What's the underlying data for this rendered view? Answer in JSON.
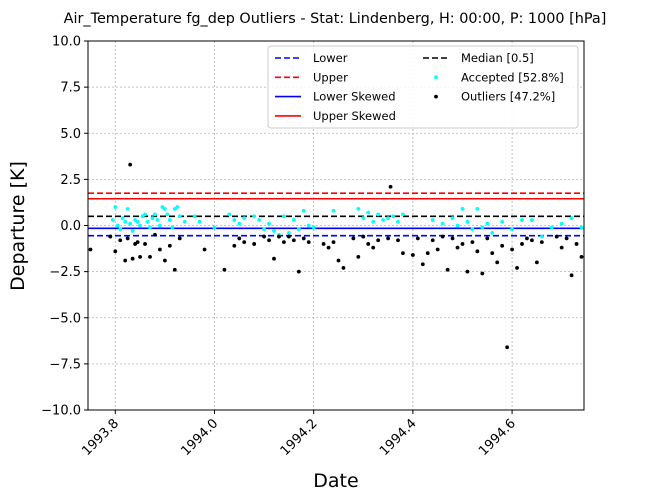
{
  "chart_data": {
    "type": "scatter",
    "title": "Air_Temperature fg_dep Outliers - Stat: Lindenberg, H: 00:00, P: 1000 [hPa]",
    "xlabel": "Date",
    "ylabel": "Departure [K]",
    "xlim": [
      1993.745,
      1994.745
    ],
    "ylim": [
      -10.0,
      10.0
    ],
    "xticks": [
      1993.8,
      1994.0,
      1994.2,
      1994.4,
      1994.6
    ],
    "xtick_labels": [
      "1993.8",
      "1994.0",
      "1994.2",
      "1994.4",
      "1994.6"
    ],
    "yticks": [
      -10.0,
      -7.5,
      -5.0,
      -2.5,
      0.0,
      2.5,
      5.0,
      7.5,
      10.0
    ],
    "ytick_labels": [
      "−10.0",
      "−7.5",
      "−5.0",
      "−2.5",
      "0.0",
      "2.5",
      "5.0",
      "7.5",
      "10.0"
    ],
    "grid": true,
    "legend_position": "top-right",
    "lines": [
      {
        "name": "Lower",
        "y": -0.55,
        "color": "#0000ff",
        "style": "dashed"
      },
      {
        "name": "Upper",
        "y": 1.75,
        "color": "#ff0000",
        "style": "dashed"
      },
      {
        "name": "Lower Skewed",
        "y": -0.15,
        "color": "#0000ff",
        "style": "solid"
      },
      {
        "name": "Upper Skewed",
        "y": 1.45,
        "color": "#ff0000",
        "style": "solid"
      },
      {
        "name": "Median [0.5]",
        "y": 0.5,
        "color": "#000000",
        "style": "dashed"
      }
    ],
    "legend_order": [
      "Lower",
      "Upper",
      "Lower Skewed",
      "Upper Skewed",
      "Median [0.5]",
      "Accepted [52.8%]",
      "Outliers [47.2%]"
    ],
    "series": [
      {
        "name": "Accepted [52.8%]",
        "color": "#00ffff",
        "points": [
          [
            1993.795,
            0.3
          ],
          [
            1993.8,
            1.0
          ],
          [
            1993.805,
            0.0
          ],
          [
            1993.81,
            -0.2
          ],
          [
            1993.815,
            0.4
          ],
          [
            1993.82,
            0.2
          ],
          [
            1993.825,
            0.9
          ],
          [
            1993.83,
            0.1
          ],
          [
            1993.835,
            -0.3
          ],
          [
            1993.84,
            0.3
          ],
          [
            1993.845,
            0.2
          ],
          [
            1993.85,
            0.0
          ],
          [
            1993.855,
            0.5
          ],
          [
            1993.86,
            0.6
          ],
          [
            1993.865,
            0.2
          ],
          [
            1993.87,
            -0.1
          ],
          [
            1993.875,
            0.4
          ],
          [
            1993.88,
            0.6
          ],
          [
            1993.885,
            0.3
          ],
          [
            1993.89,
            0.0
          ],
          [
            1993.895,
            1.0
          ],
          [
            1993.9,
            0.9
          ],
          [
            1993.905,
            0.6
          ],
          [
            1993.91,
            0.3
          ],
          [
            1993.915,
            -0.1
          ],
          [
            1993.92,
            0.9
          ],
          [
            1993.925,
            1.0
          ],
          [
            1993.93,
            0.5
          ],
          [
            1993.94,
            0.2
          ],
          [
            1993.96,
            0.5
          ],
          [
            1993.97,
            0.2
          ],
          [
            1994.0,
            -0.1
          ],
          [
            1994.03,
            0.6
          ],
          [
            1994.04,
            0.3
          ],
          [
            1994.05,
            0.1
          ],
          [
            1994.06,
            0.4
          ],
          [
            1994.08,
            0.5
          ],
          [
            1994.09,
            0.3
          ],
          [
            1994.1,
            -0.2
          ],
          [
            1994.11,
            0.1
          ],
          [
            1994.12,
            -0.3
          ],
          [
            1994.13,
            -0.5
          ],
          [
            1994.14,
            0.5
          ],
          [
            1994.15,
            -0.4
          ],
          [
            1994.16,
            0.3
          ],
          [
            1994.17,
            -0.2
          ],
          [
            1994.18,
            0.8
          ],
          [
            1994.19,
            0.0
          ],
          [
            1994.2,
            -0.1
          ],
          [
            1994.24,
            0.8
          ],
          [
            1994.29,
            0.9
          ],
          [
            1994.3,
            0.4
          ],
          [
            1994.31,
            0.7
          ],
          [
            1994.32,
            0.2
          ],
          [
            1994.33,
            0.6
          ],
          [
            1994.34,
            0.3
          ],
          [
            1994.35,
            0.4
          ],
          [
            1994.36,
            0.5
          ],
          [
            1994.37,
            0.2
          ],
          [
            1994.38,
            0.6
          ],
          [
            1994.44,
            0.3
          ],
          [
            1994.46,
            0.1
          ],
          [
            1994.48,
            0.4
          ],
          [
            1994.49,
            0.0
          ],
          [
            1994.5,
            0.9
          ],
          [
            1994.51,
            0.2
          ],
          [
            1994.52,
            -0.2
          ],
          [
            1994.53,
            0.9
          ],
          [
            1994.54,
            -0.1
          ],
          [
            1994.55,
            0.1
          ],
          [
            1994.56,
            -0.4
          ],
          [
            1994.58,
            0.2
          ],
          [
            1994.6,
            -0.2
          ],
          [
            1994.62,
            0.3
          ],
          [
            1994.64,
            0.3
          ],
          [
            1994.66,
            -0.6
          ],
          [
            1994.68,
            -0.1
          ],
          [
            1994.7,
            0.1
          ],
          [
            1994.72,
            0.4
          ],
          [
            1994.74,
            -0.1
          ]
        ]
      },
      {
        "name": "Outliers [47.2%]",
        "color": "#000000",
        "points": [
          [
            1993.75,
            -1.3
          ],
          [
            1993.79,
            -0.6
          ],
          [
            1993.8,
            -1.4
          ],
          [
            1993.81,
            -0.8
          ],
          [
            1993.82,
            -1.9
          ],
          [
            1993.825,
            -0.7
          ],
          [
            1993.83,
            3.3
          ],
          [
            1993.835,
            -1.8
          ],
          [
            1993.84,
            -1.0
          ],
          [
            1993.845,
            -0.9
          ],
          [
            1993.85,
            -1.7
          ],
          [
            1993.86,
            -1.0
          ],
          [
            1993.87,
            -1.7
          ],
          [
            1993.88,
            -0.5
          ],
          [
            1993.89,
            -1.3
          ],
          [
            1993.9,
            -1.9
          ],
          [
            1993.91,
            -1.1
          ],
          [
            1993.92,
            -2.4
          ],
          [
            1993.93,
            -0.7
          ],
          [
            1993.98,
            -1.3
          ],
          [
            1994.02,
            -2.4
          ],
          [
            1994.04,
            -1.1
          ],
          [
            1994.05,
            -0.7
          ],
          [
            1994.06,
            -0.9
          ],
          [
            1994.08,
            -1.0
          ],
          [
            1994.1,
            -0.6
          ],
          [
            1994.11,
            -0.8
          ],
          [
            1994.12,
            -1.8
          ],
          [
            1994.13,
            -0.6
          ],
          [
            1994.14,
            -0.9
          ],
          [
            1994.15,
            -0.6
          ],
          [
            1994.16,
            -0.8
          ],
          [
            1994.17,
            -2.5
          ],
          [
            1994.18,
            -0.7
          ],
          [
            1994.19,
            -0.9
          ],
          [
            1994.22,
            -1.0
          ],
          [
            1994.23,
            -1.2
          ],
          [
            1994.24,
            -0.9
          ],
          [
            1994.25,
            -1.9
          ],
          [
            1994.26,
            -2.3
          ],
          [
            1994.28,
            -0.7
          ],
          [
            1994.29,
            -1.7
          ],
          [
            1994.3,
            -0.6
          ],
          [
            1994.31,
            -1.0
          ],
          [
            1994.32,
            -1.2
          ],
          [
            1994.33,
            -0.8
          ],
          [
            1994.35,
            -0.7
          ],
          [
            1994.355,
            2.1
          ],
          [
            1994.37,
            -0.8
          ],
          [
            1994.38,
            -1.5
          ],
          [
            1994.4,
            -1.6
          ],
          [
            1994.41,
            -0.7
          ],
          [
            1994.42,
            -2.1
          ],
          [
            1994.43,
            -1.5
          ],
          [
            1994.44,
            -0.8
          ],
          [
            1994.45,
            -1.3
          ],
          [
            1994.46,
            -0.6
          ],
          [
            1994.47,
            -2.4
          ],
          [
            1994.48,
            -0.7
          ],
          [
            1994.49,
            -1.2
          ],
          [
            1994.5,
            -1.0
          ],
          [
            1994.51,
            -2.5
          ],
          [
            1994.52,
            -0.9
          ],
          [
            1994.53,
            -1.4
          ],
          [
            1994.54,
            -2.6
          ],
          [
            1994.55,
            -0.7
          ],
          [
            1994.56,
            -1.5
          ],
          [
            1994.57,
            -2.0
          ],
          [
            1994.58,
            -1.1
          ],
          [
            1994.59,
            -6.6
          ],
          [
            1994.6,
            -1.3
          ],
          [
            1994.61,
            -2.3
          ],
          [
            1994.62,
            -1.0
          ],
          [
            1994.63,
            -0.7
          ],
          [
            1994.64,
            -0.8
          ],
          [
            1994.65,
            -2.0
          ],
          [
            1994.66,
            -0.9
          ],
          [
            1994.69,
            -0.6
          ],
          [
            1994.7,
            -1.2
          ],
          [
            1994.71,
            -0.7
          ],
          [
            1994.72,
            -2.7
          ],
          [
            1994.73,
            -1.0
          ],
          [
            1994.74,
            -1.7
          ]
        ]
      }
    ]
  }
}
